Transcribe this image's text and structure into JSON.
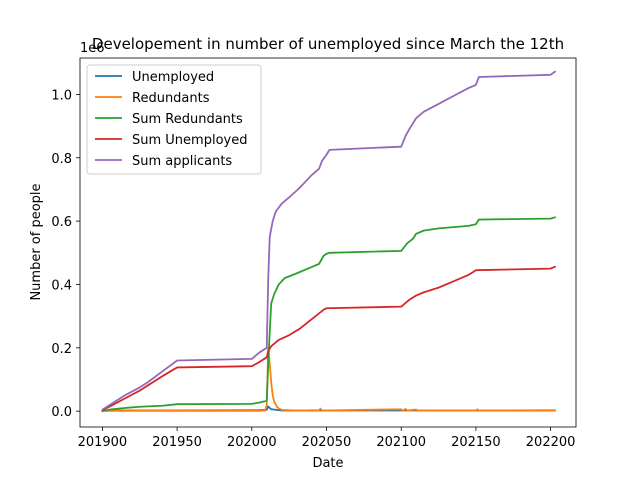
{
  "chart_data": {
    "type": "line",
    "title": "Developement in number of unemployed since March the 12th",
    "xlabel": "Date",
    "ylabel": "Number of people",
    "y_offset_label": "1e6",
    "xlim": [
      201885,
      202217
    ],
    "ylim": [
      -0.05,
      1.115
    ],
    "x_ticks": [
      201900,
      201950,
      202000,
      202050,
      202100,
      202150,
      202200
    ],
    "x_tick_labels": [
      "201900",
      "201950",
      "202000",
      "202050",
      "202100",
      "202150",
      "202200"
    ],
    "y_ticks": [
      0.0,
      0.2,
      0.4,
      0.6,
      0.8,
      1.0
    ],
    "y_tick_labels": [
      "0.0",
      "0.2",
      "0.4",
      "0.6",
      "0.8",
      "1.0"
    ],
    "grid": false,
    "legend_position": "top-left",
    "series": [
      {
        "name": "Unemployed",
        "color": "#1f77b4",
        "points": [
          [
            201900,
            0.002
          ],
          [
            201950,
            0.002
          ],
          [
            202005,
            0.003
          ],
          [
            202010,
            0.004
          ],
          [
            202011,
            0.015
          ],
          [
            202012,
            0.01
          ],
          [
            202013,
            0.006
          ],
          [
            202020,
            0.002
          ],
          [
            202050,
            0.002
          ],
          [
            202100,
            0.002
          ],
          [
            202150,
            0.002
          ],
          [
            202203,
            0.002
          ]
        ]
      },
      {
        "name": "Redundants",
        "color": "#ff7f0e",
        "points": [
          [
            201900,
            0.001
          ],
          [
            201950,
            0.001
          ],
          [
            202005,
            0.001
          ],
          [
            202009,
            0.002
          ],
          [
            202010,
            0.02
          ],
          [
            202011,
            0.2
          ],
          [
            202012,
            0.15
          ],
          [
            202013,
            0.09
          ],
          [
            202014,
            0.05
          ],
          [
            202015,
            0.03
          ],
          [
            202017,
            0.012
          ],
          [
            202020,
            0.004
          ],
          [
            202030,
            0.002
          ],
          [
            202045,
            0.003
          ],
          [
            202046,
            0.008
          ],
          [
            202047,
            0.002
          ],
          [
            202100,
            0.006
          ],
          [
            202101,
            0.002
          ],
          [
            202103,
            0.007
          ],
          [
            202104,
            0.002
          ],
          [
            202110,
            0.005
          ],
          [
            202111,
            0.002
          ],
          [
            202150,
            0.002
          ],
          [
            202151,
            0.006
          ],
          [
            202152,
            0.002
          ],
          [
            202203,
            0.003
          ]
        ]
      },
      {
        "name": "Sum Redundants",
        "color": "#2ca02c",
        "points": [
          [
            201900,
            0.0
          ],
          [
            201905,
            0.005
          ],
          [
            201915,
            0.01
          ],
          [
            201925,
            0.014
          ],
          [
            201940,
            0.017
          ],
          [
            201950,
            0.022
          ],
          [
            202000,
            0.023
          ],
          [
            202005,
            0.027
          ],
          [
            202010,
            0.033
          ],
          [
            202011,
            0.15
          ],
          [
            202012,
            0.25
          ],
          [
            202013,
            0.34
          ],
          [
            202015,
            0.37
          ],
          [
            202018,
            0.4
          ],
          [
            202022,
            0.42
          ],
          [
            202030,
            0.435
          ],
          [
            202035,
            0.445
          ],
          [
            202040,
            0.455
          ],
          [
            202045,
            0.465
          ],
          [
            202048,
            0.49
          ],
          [
            202050,
            0.497
          ],
          [
            202052,
            0.5
          ],
          [
            202100,
            0.506
          ],
          [
            202104,
            0.53
          ],
          [
            202108,
            0.545
          ],
          [
            202110,
            0.56
          ],
          [
            202115,
            0.57
          ],
          [
            202125,
            0.577
          ],
          [
            202135,
            0.581
          ],
          [
            202145,
            0.585
          ],
          [
            202150,
            0.59
          ],
          [
            202152,
            0.605
          ],
          [
            202200,
            0.608
          ],
          [
            202203,
            0.612
          ]
        ]
      },
      {
        "name": "Sum Unemployed",
        "color": "#d62728",
        "points": [
          [
            201900,
            0.003
          ],
          [
            201905,
            0.015
          ],
          [
            201915,
            0.04
          ],
          [
            201925,
            0.065
          ],
          [
            201930,
            0.08
          ],
          [
            201940,
            0.11
          ],
          [
            201950,
            0.138
          ],
          [
            202000,
            0.142
          ],
          [
            202005,
            0.155
          ],
          [
            202010,
            0.17
          ],
          [
            202011,
            0.19
          ],
          [
            202013,
            0.205
          ],
          [
            202018,
            0.225
          ],
          [
            202025,
            0.24
          ],
          [
            202032,
            0.26
          ],
          [
            202040,
            0.29
          ],
          [
            202048,
            0.32
          ],
          [
            202050,
            0.325
          ],
          [
            202100,
            0.33
          ],
          [
            202105,
            0.35
          ],
          [
            202110,
            0.365
          ],
          [
            202115,
            0.375
          ],
          [
            202125,
            0.39
          ],
          [
            202135,
            0.41
          ],
          [
            202145,
            0.43
          ],
          [
            202150,
            0.445
          ],
          [
            202200,
            0.45
          ],
          [
            202203,
            0.456
          ]
        ]
      },
      {
        "name": "Sum applicants",
        "color": "#9467bd",
        "points": [
          [
            201900,
            0.005
          ],
          [
            201905,
            0.02
          ],
          [
            201915,
            0.05
          ],
          [
            201925,
            0.075
          ],
          [
            201930,
            0.09
          ],
          [
            201940,
            0.125
          ],
          [
            201950,
            0.16
          ],
          [
            202000,
            0.165
          ],
          [
            202005,
            0.185
          ],
          [
            202010,
            0.2
          ],
          [
            202011,
            0.42
          ],
          [
            202012,
            0.55
          ],
          [
            202014,
            0.6
          ],
          [
            202016,
            0.63
          ],
          [
            202020,
            0.655
          ],
          [
            202025,
            0.675
          ],
          [
            202032,
            0.705
          ],
          [
            202040,
            0.745
          ],
          [
            202045,
            0.765
          ],
          [
            202047,
            0.79
          ],
          [
            202050,
            0.81
          ],
          [
            202052,
            0.825
          ],
          [
            202100,
            0.835
          ],
          [
            202103,
            0.87
          ],
          [
            202106,
            0.895
          ],
          [
            202110,
            0.925
          ],
          [
            202115,
            0.945
          ],
          [
            202125,
            0.97
          ],
          [
            202135,
            0.995
          ],
          [
            202145,
            1.02
          ],
          [
            202150,
            1.03
          ],
          [
            202152,
            1.055
          ],
          [
            202200,
            1.062
          ],
          [
            202203,
            1.072
          ]
        ]
      }
    ]
  }
}
